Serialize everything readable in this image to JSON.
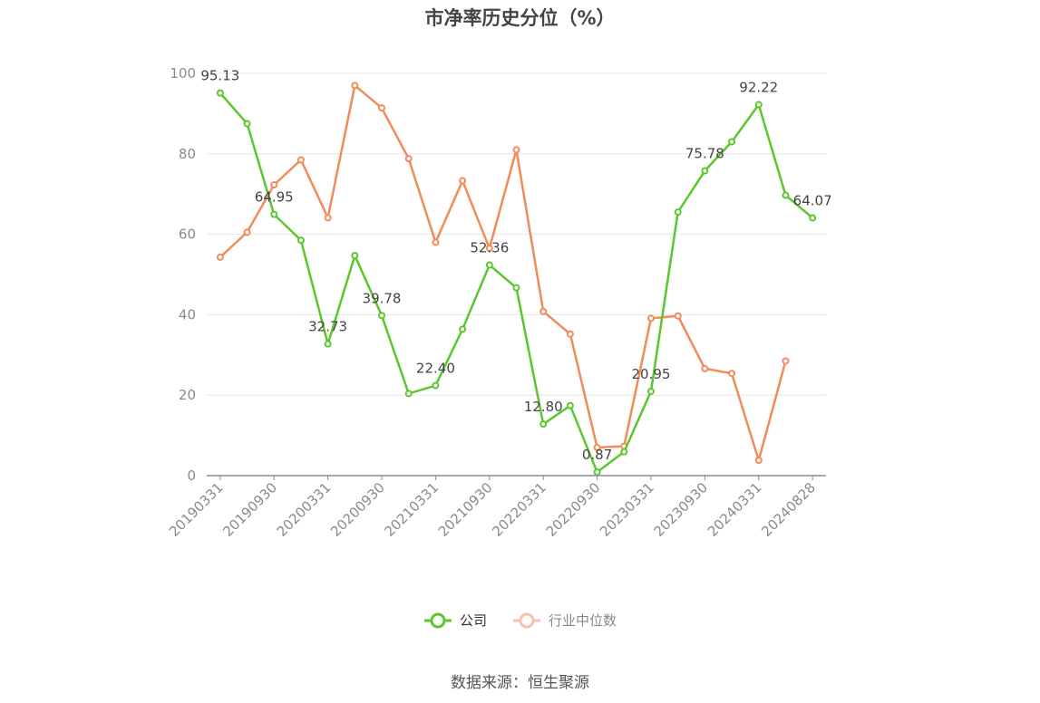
{
  "title": "市净率历史分位（%）",
  "source": "数据来源：恒生聚源",
  "legend": {
    "company": "公司",
    "industry": "行业中位数"
  },
  "colors": {
    "company": "#5bc72e",
    "industry": "#f28b5b",
    "grid": "#e6e6e6",
    "axis": "#8a8a9a"
  },
  "chart_data": {
    "type": "line",
    "title": "市净率历史分位（%）",
    "ylim": [
      0,
      100
    ],
    "yticks": [
      0,
      20,
      40,
      60,
      80,
      100
    ],
    "grid": true,
    "legend_position": "bottom-center",
    "x": [
      "20190331",
      "20190630",
      "20190930",
      "20191231",
      "20200331",
      "20200630",
      "20200930",
      "20201231",
      "20210331",
      "20210630",
      "20210930",
      "20211231",
      "20220331",
      "20220630",
      "20220930",
      "20221231",
      "20230331",
      "20230630",
      "20230930",
      "20231231",
      "20240331",
      "20240630",
      "20240828"
    ],
    "x_tick_labels": [
      "20190331",
      "20190930",
      "20200331",
      "20200930",
      "20210331",
      "20210930",
      "20220331",
      "20220930",
      "20230331",
      "20230930",
      "20240331",
      "20240828"
    ],
    "series": [
      {
        "name": "公司",
        "values": [
          95.13,
          87.5,
          64.95,
          58.5,
          32.73,
          54.7,
          39.78,
          20.4,
          22.4,
          36.4,
          52.36,
          46.7,
          12.8,
          17.4,
          0.87,
          5.9,
          20.95,
          65.5,
          75.78,
          83.0,
          92.22,
          69.7,
          64.07
        ],
        "labels": [
          "95.13",
          null,
          "64.95",
          null,
          "32.73",
          null,
          "39.78",
          null,
          "22.40",
          null,
          "52.36",
          null,
          "12.80",
          null,
          "0.87",
          null,
          "20.95",
          null,
          "75.78",
          null,
          "92.22",
          null,
          "64.07"
        ]
      },
      {
        "name": "行业中位数",
        "values": [
          54.3,
          60.5,
          72.3,
          78.5,
          64.1,
          97.0,
          91.4,
          78.8,
          58.0,
          73.3,
          56.5,
          81.0,
          40.8,
          35.2,
          7.0,
          7.3,
          39.1,
          39.7,
          26.6,
          25.4,
          3.8,
          28.5,
          null
        ]
      }
    ]
  }
}
